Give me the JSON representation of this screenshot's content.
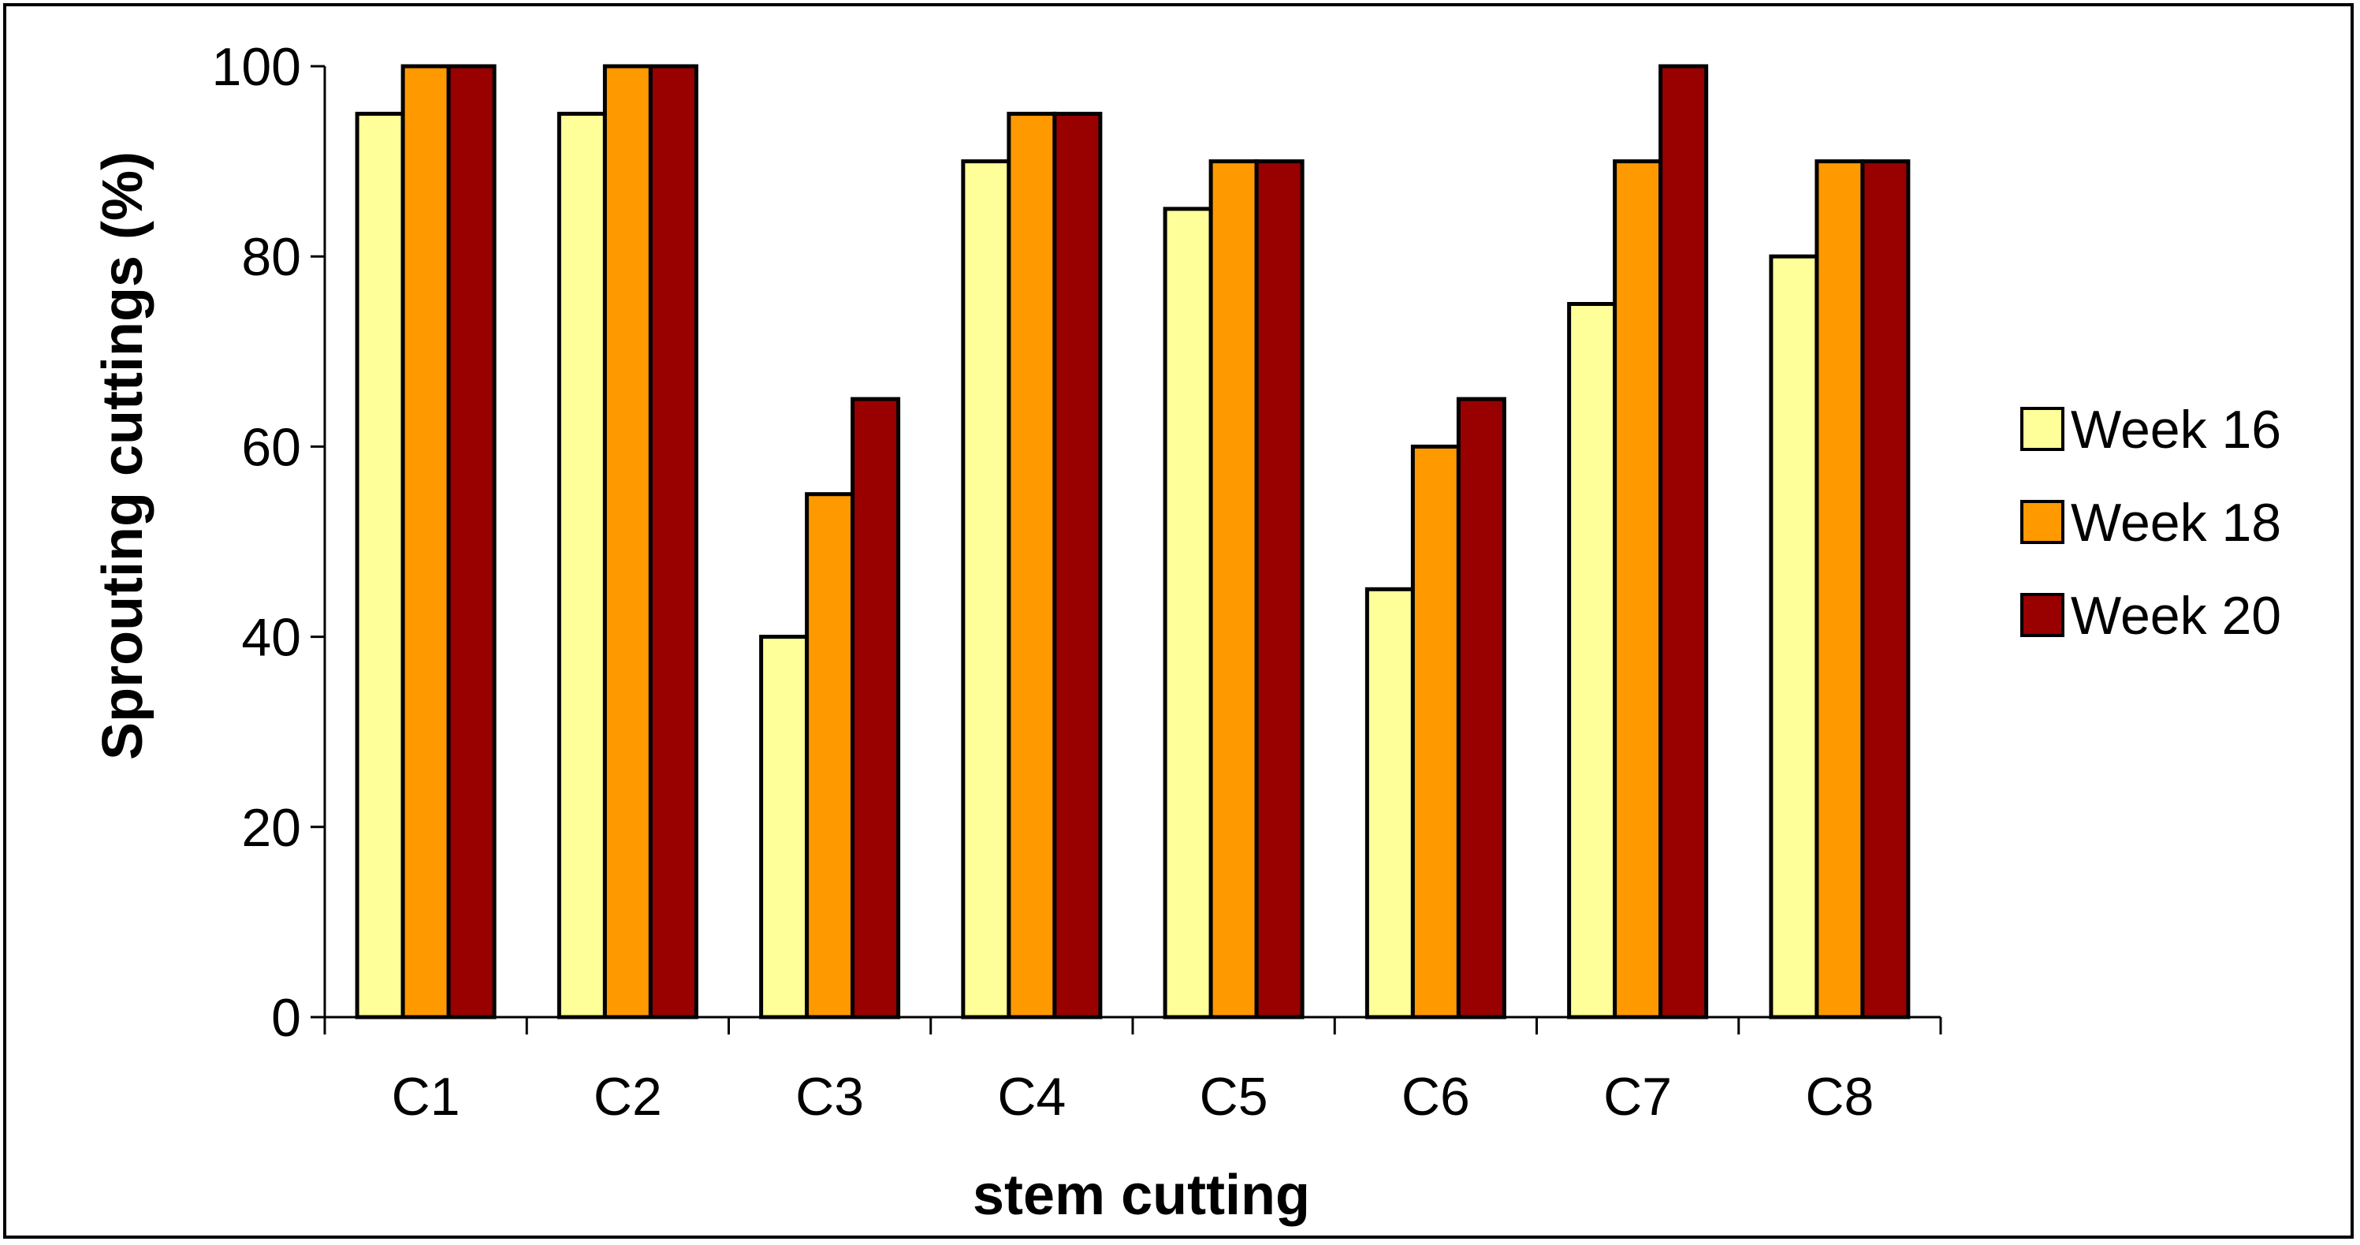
{
  "chart_data": {
    "type": "bar",
    "title": "",
    "xlabel": "stem cutting",
    "ylabel": "Sprouting cuttings (%)",
    "ylim": [
      0,
      100
    ],
    "yticks": [
      0,
      20,
      40,
      60,
      80,
      100
    ],
    "categories": [
      "C1",
      "C2",
      "C3",
      "C4",
      "C5",
      "C6",
      "C7",
      "C8"
    ],
    "series": [
      {
        "name": "Week 16",
        "color": "#FFFF99",
        "values": [
          95,
          95,
          40,
          90,
          85,
          45,
          75,
          80
        ]
      },
      {
        "name": "Week 18",
        "color": "#FF9900",
        "values": [
          100,
          100,
          55,
          95,
          90,
          60,
          90,
          90
        ]
      },
      {
        "name": "Week 20",
        "color": "#990000",
        "values": [
          100,
          100,
          65,
          95,
          90,
          65,
          100,
          90
        ]
      }
    ],
    "legend_position": "right",
    "grid": false
  }
}
